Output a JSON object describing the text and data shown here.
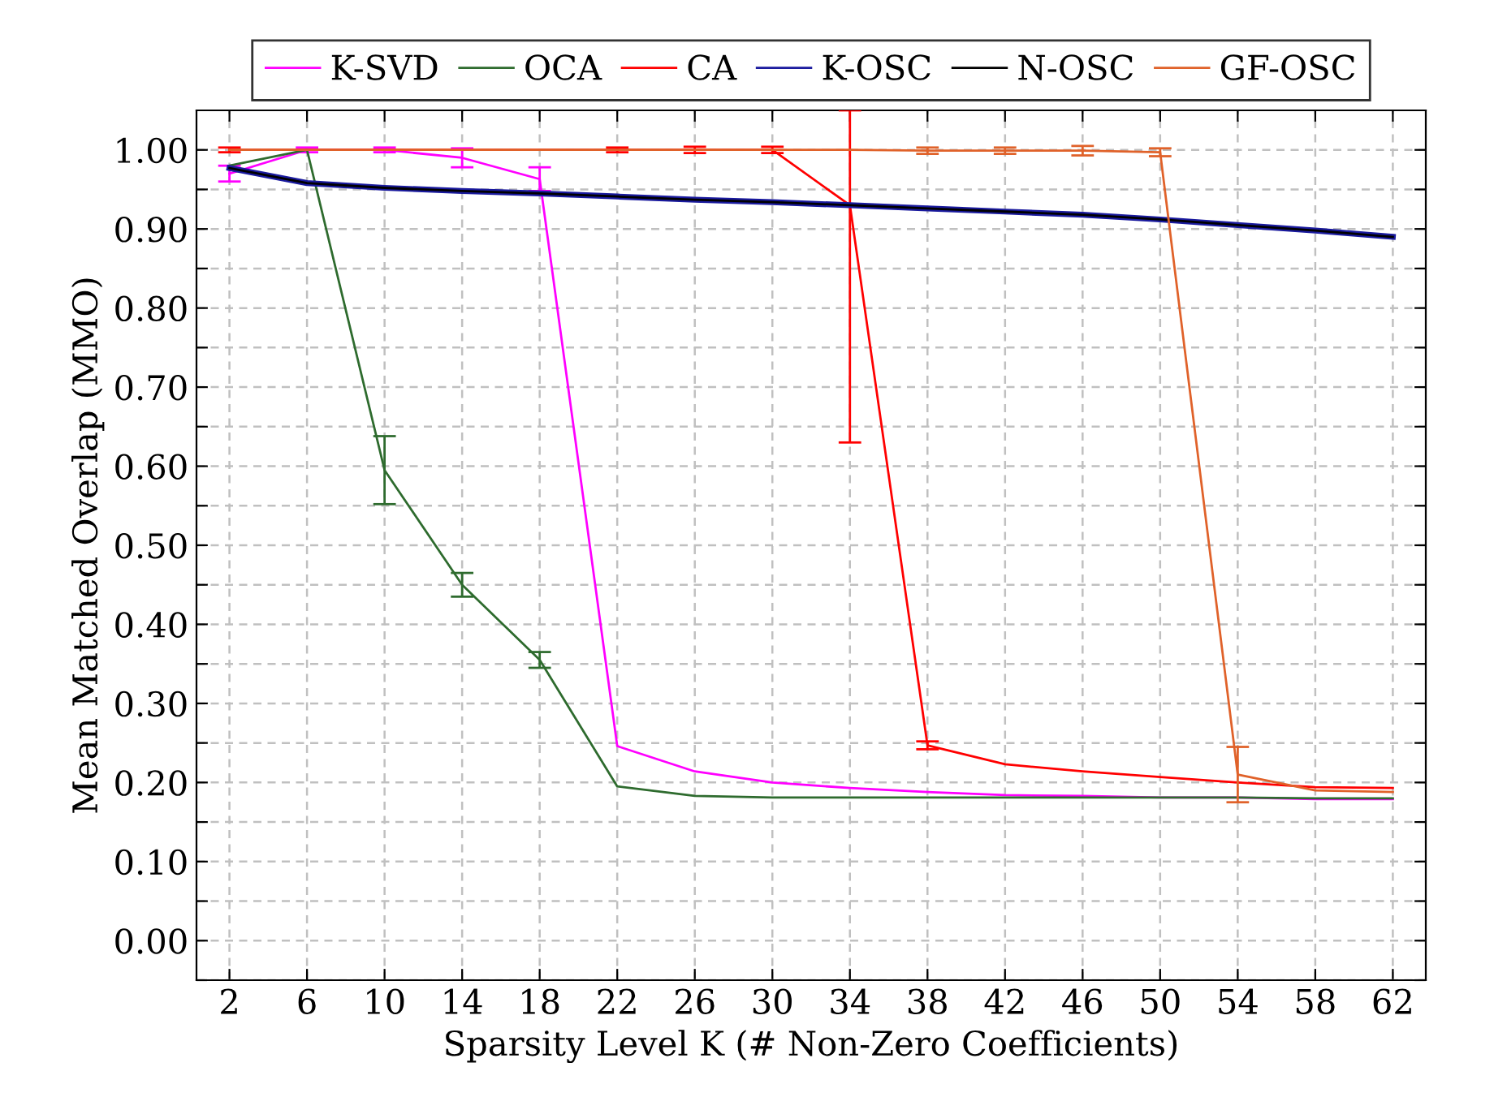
{
  "chart_data": {
    "type": "line",
    "xlabel": "Sparsity Level K (# Non-Zero Coefficients)",
    "ylabel": "Mean Matched Overlap (MMO)",
    "x": [
      2,
      6,
      10,
      14,
      18,
      22,
      26,
      30,
      34,
      38,
      42,
      46,
      50,
      54,
      58,
      62
    ],
    "xlim": [
      0.3,
      63.7
    ],
    "xticks": [
      2,
      6,
      10,
      14,
      18,
      22,
      26,
      30,
      34,
      38,
      42,
      46,
      50,
      54,
      58,
      62
    ],
    "ylim": [
      -0.05,
      1.05
    ],
    "yticks": [
      {
        "value": -0.05,
        "label": null
      },
      {
        "value": 0,
        "label": "0.00"
      },
      {
        "value": 0.05,
        "label": null
      },
      {
        "value": 0.1,
        "label": "0.10"
      },
      {
        "value": 0.15,
        "label": null
      },
      {
        "value": 0.2,
        "label": "0.20"
      },
      {
        "value": 0.25,
        "label": null
      },
      {
        "value": 0.3,
        "label": "0.30"
      },
      {
        "value": 0.35,
        "label": null
      },
      {
        "value": 0.4,
        "label": "0.40"
      },
      {
        "value": 0.45,
        "label": null
      },
      {
        "value": 0.5,
        "label": "0.50"
      },
      {
        "value": 0.55,
        "label": null
      },
      {
        "value": 0.6,
        "label": "0.60"
      },
      {
        "value": 0.65,
        "label": null
      },
      {
        "value": 0.7,
        "label": "0.70"
      },
      {
        "value": 0.75,
        "label": null
      },
      {
        "value": 0.8,
        "label": "0.80"
      },
      {
        "value": 0.85,
        "label": null
      },
      {
        "value": 0.9,
        "label": "0.90"
      },
      {
        "value": 0.95,
        "label": null
      },
      {
        "value": 1.0,
        "label": "1.00"
      }
    ],
    "grid": true,
    "legend": "top",
    "marker": "none",
    "line_style": "solid",
    "series": [
      {
        "name": "K-SVD",
        "color": "#ff00ff",
        "values": [
          0.97,
          1.0,
          1.0,
          0.99,
          0.963,
          0.246,
          0.214,
          0.2,
          0.193,
          0.188,
          0.184,
          0.183,
          0.181,
          0.181,
          0.179,
          0.179
        ],
        "errors": [
          0.01,
          0.003,
          0.003,
          0.012,
          0.015,
          null,
          null,
          null,
          null,
          null,
          null,
          null,
          null,
          null,
          null,
          null
        ]
      },
      {
        "name": "OCA",
        "color": "#2e6b2e",
        "values": [
          0.98,
          1.0,
          0.595,
          0.45,
          0.355,
          0.195,
          0.183,
          0.181,
          0.181,
          0.181,
          0.181,
          0.181,
          0.181,
          0.181,
          0.18,
          0.18
        ],
        "errors": [
          null,
          null,
          0.043,
          0.015,
          0.01,
          null,
          null,
          null,
          null,
          null,
          null,
          null,
          null,
          null,
          null,
          null
        ]
      },
      {
        "name": "CA",
        "color": "#ff0000",
        "values": [
          1.0,
          1.0,
          1.0,
          1.0,
          1.0,
          1.0,
          1.0,
          1.0,
          0.93,
          0.247,
          0.223,
          0.214,
          0.207,
          0.2,
          0.194,
          0.193
        ],
        "errors": [
          0.003,
          null,
          null,
          null,
          null,
          0.003,
          0.004,
          0.004,
          [
            0.63,
            1.05
          ],
          0.005,
          null,
          null,
          null,
          null,
          null,
          null
        ]
      },
      {
        "name": "K-OSC",
        "color": "#1a1a9e",
        "values": [
          0.977,
          0.958,
          0.952,
          0.948,
          0.945,
          0.941,
          0.937,
          0.934,
          0.93,
          0.926,
          0.922,
          0.918,
          0.912,
          0.905,
          0.898,
          0.89
        ]
      },
      {
        "name": "N-OSC",
        "color": "#000000",
        "values": [
          0.977,
          0.958,
          0.952,
          0.948,
          0.945,
          0.941,
          0.937,
          0.934,
          0.93,
          0.926,
          0.922,
          0.918,
          0.912,
          0.905,
          0.898,
          0.89
        ]
      },
      {
        "name": "GF-OSC",
        "color": "#e0622a",
        "values": [
          1.0,
          1.0,
          1.0,
          1.0,
          1.0,
          1.0,
          1.0,
          1.0,
          1.0,
          0.999,
          0.999,
          0.999,
          0.997,
          0.21,
          0.19,
          0.188
        ],
        "errors": [
          null,
          null,
          null,
          null,
          null,
          null,
          null,
          null,
          null,
          0.004,
          0.004,
          0.006,
          0.005,
          0.035,
          null,
          null
        ]
      }
    ]
  }
}
